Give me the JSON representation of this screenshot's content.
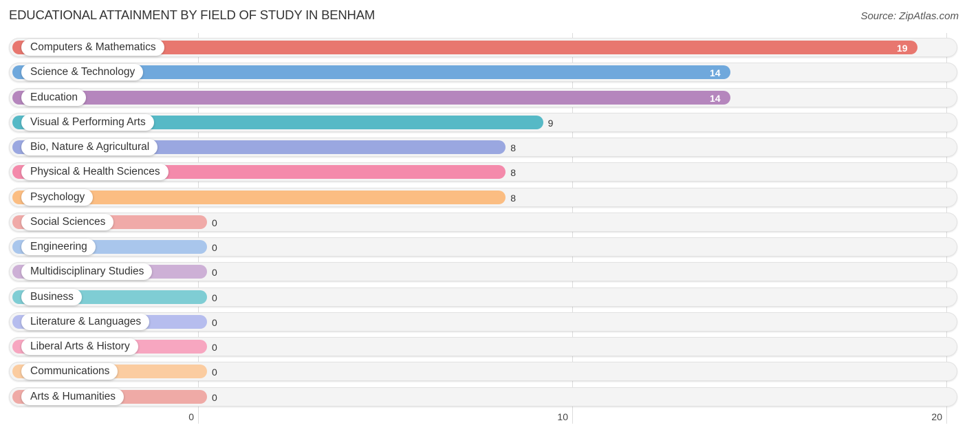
{
  "title": "EDUCATIONAL ATTAINMENT BY FIELD OF STUDY IN BENHAM",
  "source": "Source: ZipAtlas.com",
  "chart_data": {
    "type": "bar",
    "orientation": "horizontal",
    "title": "EDUCATIONAL ATTAINMENT BY FIELD OF STUDY IN BENHAM",
    "xlabel": "",
    "ylabel": "",
    "xlim": [
      0,
      20
    ],
    "x_ticks": [
      "0",
      "10",
      "20"
    ],
    "grid": true,
    "categories": [
      "Computers & Mathematics",
      "Science & Technology",
      "Education",
      "Visual & Performing Arts",
      "Bio, Nature & Agricultural",
      "Physical & Health Sciences",
      "Psychology",
      "Social Sciences",
      "Engineering",
      "Multidisciplinary Studies",
      "Business",
      "Literature & Languages",
      "Liberal Arts & History",
      "Communications",
      "Arts & Humanities"
    ],
    "values": [
      19,
      14,
      14,
      9,
      8,
      8,
      8,
      0,
      0,
      0,
      0,
      0,
      0,
      0,
      0
    ],
    "value_labels": [
      "19",
      "14",
      "14",
      "9",
      "8",
      "8",
      "8",
      "0",
      "0",
      "0",
      "0",
      "0",
      "0",
      "0",
      "0"
    ],
    "colors": [
      "#e8776f",
      "#6fa8dc",
      "#b586bd",
      "#56b9c6",
      "#9aa7e0",
      "#f48aab",
      "#fbbd82",
      "#f0aaa8",
      "#a9c6ec",
      "#cdb0d6",
      "#7fcdd4",
      "#b6bdee",
      "#f7a6c0",
      "#fbcca0",
      "#efaaa6"
    ]
  }
}
